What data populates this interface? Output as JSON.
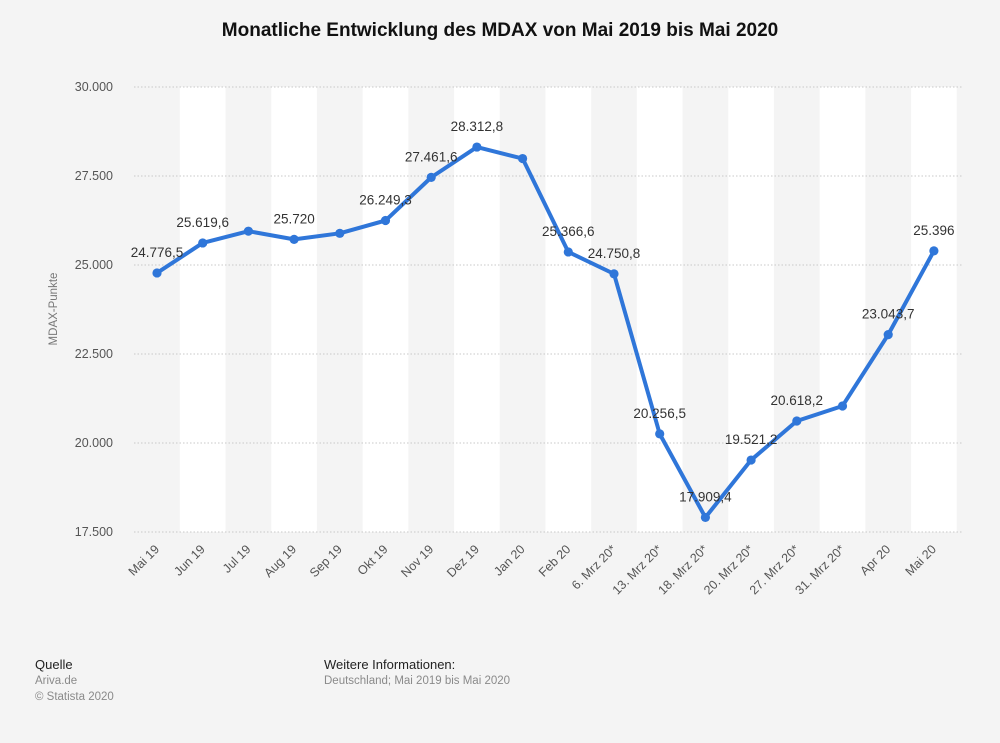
{
  "chart_data": {
    "type": "line",
    "title": "Monatliche Entwicklung des MDAX von Mai 2019 bis Mai 2020",
    "xlabel": "",
    "ylabel": "MDAX-Punkte",
    "ylim": [
      17500,
      30000
    ],
    "yticks": [
      "17.500",
      "20.000",
      "22.500",
      "25.000",
      "27.500",
      "30.000"
    ],
    "ytick_values": [
      17500,
      20000,
      22500,
      25000,
      27500,
      30000
    ],
    "grid": true,
    "categories": [
      "Mai 19",
      "Jun 19",
      "Jul 19",
      "Aug 19",
      "Sep 19",
      "Okt 19",
      "Nov 19",
      "Dez 19",
      "Jan 20",
      "Feb 20",
      "6. Mrz 20*",
      "13. Mrz 20*",
      "18. Mrz 20*",
      "20. Mrz 20*",
      "27. Mrz 20*",
      "31. Mrz 20*",
      "Apr 20",
      "Mai 20"
    ],
    "series": [
      {
        "color": "#2f76d9",
        "values": [
          24776.5,
          25619.6,
          25950,
          25720,
          25890,
          26249.3,
          27461.6,
          28312.8,
          27990,
          25366.6,
          24750.8,
          20256.5,
          17909.4,
          19521.2,
          20618.2,
          21040,
          23043.7,
          25396
        ],
        "data_labels": [
          "24.776,5",
          "25.619,6",
          "",
          "25.720",
          "",
          "26.249,3",
          "27.461,6",
          "28.312,8",
          "",
          "25.366,6",
          "24.750,8",
          "20.256,5",
          "17.909,4",
          "19.521,2",
          "20.618,2",
          "",
          "23.043,7",
          "25.396"
        ]
      }
    ]
  },
  "footer": {
    "source_heading": "Quelle",
    "source_line1": "Ariva.de",
    "source_line2": "© Statista 2020",
    "info_heading": "Weitere Informationen:",
    "info_line": "Deutschland; Mai 2019 bis Mai 2020"
  }
}
